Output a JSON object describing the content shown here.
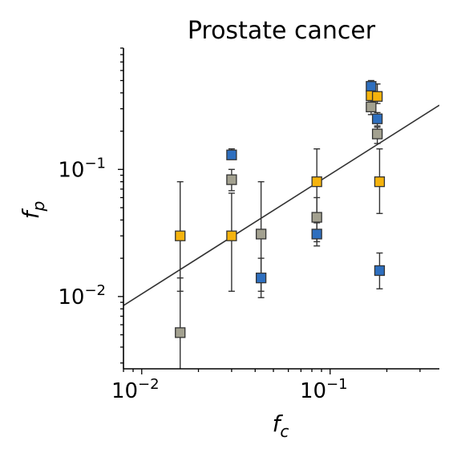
{
  "chart_data": {
    "type": "scatter",
    "title": "Prostate cancer",
    "xlabel": "f",
    "xlabel_sub": "c",
    "ylabel": "f",
    "ylabel_sub": "p",
    "xscale": "log",
    "yscale": "log",
    "xlim": [
      0.008,
      0.38
    ],
    "ylim": [
      0.0027,
      0.9
    ],
    "grid": false,
    "x_ticks": [
      {
        "value": 0.01,
        "base": "10",
        "exp": "−2"
      },
      {
        "value": 0.1,
        "base": "10",
        "exp": "−1"
      }
    ],
    "y_ticks": [
      {
        "value": 0.01,
        "base": "10",
        "exp": "−2"
      },
      {
        "value": 0.1,
        "base": "10",
        "exp": "−1"
      }
    ],
    "series": [
      {
        "color": "#2e6fbf",
        "points": [
          {
            "x": 0.03,
            "y": 0.13,
            "lo": 0.12,
            "hi": 0.145
          },
          {
            "x": 0.043,
            "y": 0.014,
            "lo": 0.011,
            "hi": 0.02
          },
          {
            "x": 0.085,
            "y": 0.031,
            "lo": 0.025,
            "hi": 0.038
          },
          {
            "x": 0.165,
            "y": 0.45,
            "lo": 0.38,
            "hi": 0.5
          },
          {
            "x": 0.178,
            "y": 0.25,
            "lo": 0.22,
            "hi": 0.28
          },
          {
            "x": 0.183,
            "y": 0.016,
            "lo": 0.0115,
            "hi": 0.022
          }
        ]
      },
      {
        "color": "#f5b30d",
        "points": [
          {
            "x": 0.016,
            "y": 0.03,
            "lo": 0.011,
            "hi": 0.08
          },
          {
            "x": 0.03,
            "y": 0.03,
            "lo": 0.011,
            "hi": 0.065
          },
          {
            "x": 0.085,
            "y": 0.08,
            "lo": 0.04,
            "hi": 0.145
          },
          {
            "x": 0.165,
            "y": 0.38,
            "lo": 0.34,
            "hi": 0.42
          },
          {
            "x": 0.178,
            "y": 0.375,
            "lo": 0.33,
            "hi": 0.47
          },
          {
            "x": 0.183,
            "y": 0.08,
            "lo": 0.045,
            "hi": 0.145
          }
        ]
      },
      {
        "color": "#a3a190",
        "points": [
          {
            "x": 0.016,
            "y": 0.0052,
            "lo": 0.0026,
            "hi": 0.014
          },
          {
            "x": 0.03,
            "y": 0.083,
            "lo": 0.068,
            "hi": 0.1
          },
          {
            "x": 0.043,
            "y": 0.031,
            "lo": 0.0098,
            "hi": 0.08
          },
          {
            "x": 0.085,
            "y": 0.042,
            "lo": 0.027,
            "hi": 0.06
          },
          {
            "x": 0.165,
            "y": 0.31,
            "lo": 0.27,
            "hi": 0.35
          },
          {
            "x": 0.178,
            "y": 0.19,
            "lo": 0.16,
            "hi": 0.215
          }
        ]
      }
    ],
    "trend_line": {
      "color": "#333333",
      "x": [
        0.008,
        0.38
      ],
      "y": [
        0.0085,
        0.32
      ]
    }
  }
}
